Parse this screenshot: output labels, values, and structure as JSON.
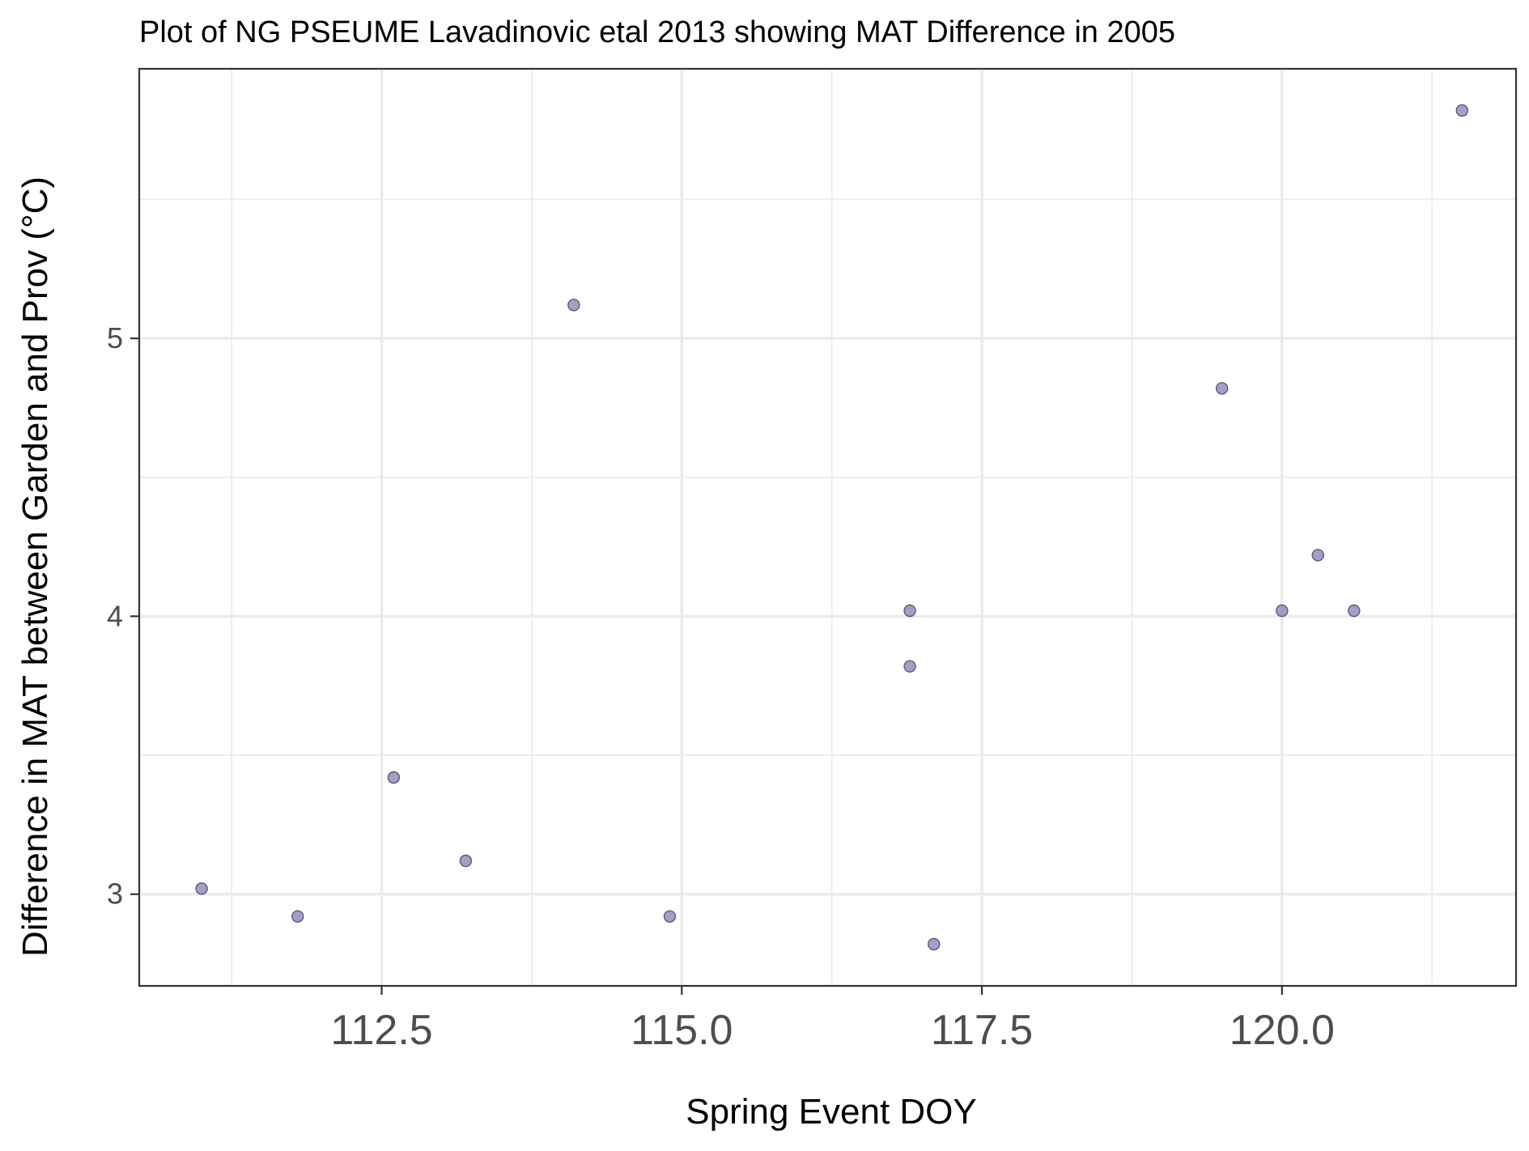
{
  "chart_data": {
    "type": "scatter",
    "title": "Plot of NG PSEUME Lavadinovic etal 2013 showing MAT Difference in 2005",
    "xlabel": "Spring Event DOY",
    "ylabel": "Difference in MAT between Garden and Prov (°C)",
    "xlim": [
      110.48,
      121.95
    ],
    "ylim": [
      2.67,
      5.97
    ],
    "x_ticks": [
      112.5,
      115.0,
      117.5,
      120.0
    ],
    "x_tick_labels": [
      "112.5",
      "115.0",
      "117.5",
      "120.0"
    ],
    "x_minor_ticks": [
      111.25,
      113.75,
      116.25,
      118.75,
      121.25
    ],
    "y_ticks": [
      3,
      4,
      5
    ],
    "y_tick_labels": [
      "3",
      "4",
      "5"
    ],
    "y_minor_ticks": [
      3.5,
      4.5,
      5.5
    ],
    "grid": true,
    "legend": "none",
    "point_color": "#9e93bf",
    "point_stroke": "#5f5778",
    "points": [
      {
        "x": 111.0,
        "y": 3.02
      },
      {
        "x": 111.8,
        "y": 2.92
      },
      {
        "x": 112.6,
        "y": 3.42
      },
      {
        "x": 113.2,
        "y": 3.12
      },
      {
        "x": 114.1,
        "y": 5.12
      },
      {
        "x": 114.9,
        "y": 2.92
      },
      {
        "x": 116.9,
        "y": 4.02
      },
      {
        "x": 116.9,
        "y": 3.82
      },
      {
        "x": 117.1,
        "y": 2.82
      },
      {
        "x": 119.5,
        "y": 4.82
      },
      {
        "x": 120.0,
        "y": 4.02
      },
      {
        "x": 120.3,
        "y": 4.22
      },
      {
        "x": 120.6,
        "y": 4.02
      },
      {
        "x": 121.5,
        "y": 5.82
      }
    ]
  }
}
